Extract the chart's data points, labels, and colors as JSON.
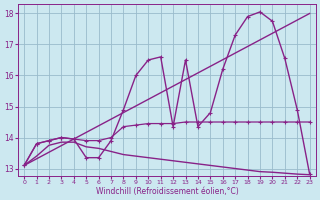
{
  "xlabel": "Windchill (Refroidissement éolien,°C)",
  "bg_color": "#cce8f0",
  "line_color": "#882288",
  "grid_color": "#99bbcc",
  "xlim": [
    -0.5,
    23.5
  ],
  "ylim": [
    12.75,
    18.3
  ],
  "xticks": [
    0,
    1,
    2,
    3,
    4,
    5,
    6,
    7,
    8,
    9,
    10,
    11,
    12,
    13,
    14,
    15,
    16,
    17,
    18,
    19,
    20,
    21,
    22,
    23
  ],
  "yticks": [
    13,
    14,
    15,
    16,
    17,
    18
  ],
  "series": [
    {
      "x": [
        0,
        1,
        2,
        3,
        4,
        5,
        6,
        7,
        8,
        9,
        10,
        11,
        12,
        13,
        14,
        15,
        16,
        17,
        18,
        19,
        20,
        21,
        22,
        23
      ],
      "y": [
        13.1,
        13.4,
        13.75,
        13.85,
        13.85,
        13.7,
        13.65,
        13.55,
        13.45,
        13.4,
        13.35,
        13.3,
        13.25,
        13.2,
        13.15,
        13.1,
        13.05,
        13.0,
        12.95,
        12.9,
        12.88,
        12.85,
        12.82,
        12.8
      ],
      "marker": null,
      "lw": 1.0
    },
    {
      "x": [
        0,
        23
      ],
      "y": [
        13.1,
        18.0
      ],
      "marker": null,
      "lw": 1.0
    },
    {
      "x": [
        0,
        1,
        2,
        3,
        4,
        5,
        6,
        7,
        8,
        9,
        10,
        11,
        12,
        13,
        14,
        15,
        16,
        17,
        18,
        19,
        20,
        21,
        22,
        23
      ],
      "y": [
        13.1,
        13.8,
        13.9,
        14.0,
        13.95,
        13.9,
        13.9,
        14.0,
        14.35,
        14.4,
        14.45,
        14.45,
        14.45,
        14.5,
        14.5,
        14.5,
        14.5,
        14.5,
        14.5,
        14.5,
        14.5,
        14.5,
        14.5,
        14.5
      ],
      "marker": "+",
      "lw": 0.9
    },
    {
      "x": [
        0,
        1,
        2,
        3,
        4,
        5,
        6,
        7,
        8,
        9,
        10,
        11,
        12,
        13,
        14,
        15,
        16,
        17,
        18,
        19,
        20,
        21,
        22,
        23
      ],
      "y": [
        13.1,
        13.8,
        13.9,
        14.0,
        13.95,
        13.35,
        13.35,
        13.9,
        14.9,
        16.0,
        16.5,
        16.6,
        14.35,
        16.5,
        14.35,
        14.8,
        16.2,
        17.3,
        17.9,
        18.05,
        17.75,
        16.55,
        14.9,
        12.82
      ],
      "marker": "+",
      "lw": 1.0
    }
  ]
}
